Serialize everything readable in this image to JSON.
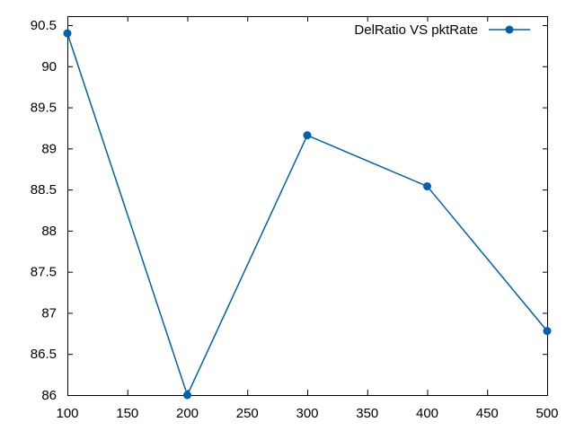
{
  "chart_data": {
    "type": "line",
    "title": "",
    "xlabel": "",
    "ylabel": "",
    "xlim": [
      100,
      500
    ],
    "ylim": [
      86,
      90.5
    ],
    "xticks": [
      100,
      150,
      200,
      250,
      300,
      350,
      400,
      450,
      500
    ],
    "yticks": [
      86,
      86.5,
      87,
      87.5,
      88,
      88.5,
      89,
      89.5,
      90,
      90.5
    ],
    "grid": false,
    "legend_position": "top-right",
    "series": [
      {
        "name": "DelRatio VS pktRate",
        "color": "#0060ad",
        "marker": "circle",
        "x": [
          100,
          200,
          300,
          400,
          500
        ],
        "y": [
          90.4,
          86.0,
          89.16,
          88.54,
          86.78
        ]
      }
    ]
  }
}
